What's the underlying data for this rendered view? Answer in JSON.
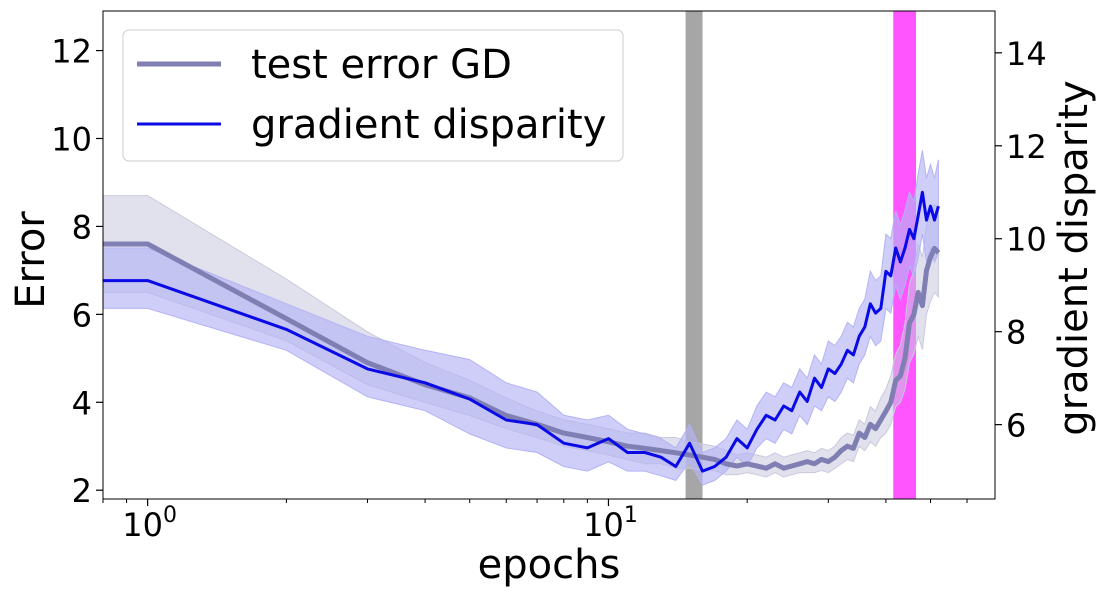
{
  "chart_data": {
    "type": "line",
    "xscale": "log",
    "xlim": [
      0.8,
      69
    ],
    "ylim_left": [
      1.8,
      12.9
    ],
    "ylim_right": [
      4.4,
      14.9
    ],
    "xlabel": "epochs",
    "ylabel_left": "Error",
    "ylabel_right": "gradient disparity",
    "x_ticks": [
      {
        "value": 1,
        "base": "10",
        "exp": "0"
      },
      {
        "value": 10,
        "base": "10",
        "exp": "1"
      }
    ],
    "y_ticks_left": [
      {
        "value": 2,
        "label": "2"
      },
      {
        "value": 4,
        "label": "4"
      },
      {
        "value": 6,
        "label": "6"
      },
      {
        "value": 8,
        "label": "8"
      },
      {
        "value": 10,
        "label": "10"
      },
      {
        "value": 12,
        "label": "12"
      }
    ],
    "y_ticks_right": [
      {
        "value": 6,
        "label": "6"
      },
      {
        "value": 8,
        "label": "8"
      },
      {
        "value": 10,
        "label": "10"
      },
      {
        "value": 12,
        "label": "12"
      },
      {
        "value": 14,
        "label": "14"
      }
    ],
    "legend_position": "top-left",
    "series": [
      {
        "name": "test error GD",
        "axis": "left",
        "color": "#7f7fb3",
        "band_color": "#c9c9de",
        "points": [
          [
            0.8,
            7.6,
            6.5,
            8.7
          ],
          [
            1,
            7.6,
            6.5,
            8.7
          ],
          [
            2,
            5.9,
            5.4,
            6.8
          ],
          [
            3,
            4.9,
            4.4,
            5.6
          ],
          [
            4,
            4.4,
            4.0,
            4.9
          ],
          [
            5,
            4.1,
            3.7,
            4.5
          ],
          [
            6,
            3.7,
            3.4,
            4.1
          ],
          [
            7,
            3.5,
            3.2,
            3.8
          ],
          [
            8,
            3.3,
            3.0,
            3.6
          ],
          [
            9,
            3.2,
            2.9,
            3.5
          ],
          [
            10,
            3.1,
            2.8,
            3.4
          ],
          [
            11,
            3.0,
            2.7,
            3.3
          ],
          [
            12,
            2.95,
            2.6,
            3.3
          ],
          [
            13,
            2.9,
            2.6,
            3.2
          ],
          [
            14,
            2.85,
            2.5,
            3.2
          ],
          [
            15,
            2.8,
            2.5,
            3.1
          ],
          [
            16,
            2.75,
            2.45,
            3.05
          ],
          [
            17,
            2.7,
            2.45,
            3.0
          ],
          [
            18,
            2.6,
            2.35,
            2.9
          ],
          [
            19,
            2.55,
            2.35,
            2.8
          ],
          [
            20,
            2.6,
            2.4,
            2.85
          ],
          [
            21,
            2.55,
            2.35,
            2.8
          ],
          [
            22,
            2.5,
            2.3,
            2.75
          ],
          [
            23,
            2.6,
            2.4,
            2.85
          ],
          [
            24,
            2.5,
            2.3,
            2.75
          ],
          [
            25,
            2.55,
            2.35,
            2.8
          ],
          [
            26,
            2.6,
            2.4,
            2.85
          ],
          [
            27,
            2.65,
            2.4,
            2.9
          ],
          [
            28,
            2.6,
            2.4,
            2.85
          ],
          [
            29,
            2.7,
            2.45,
            2.95
          ],
          [
            30,
            2.65,
            2.4,
            2.9
          ],
          [
            31,
            2.75,
            2.5,
            3.0
          ],
          [
            32,
            2.9,
            2.6,
            3.2
          ],
          [
            33,
            3.0,
            2.7,
            3.3
          ],
          [
            34,
            2.95,
            2.65,
            3.25
          ],
          [
            35,
            3.3,
            3.0,
            3.6
          ],
          [
            36,
            3.2,
            2.9,
            3.5
          ],
          [
            37,
            3.5,
            3.1,
            3.9
          ],
          [
            38,
            3.4,
            3.0,
            3.8
          ],
          [
            39,
            3.6,
            3.2,
            4.1
          ],
          [
            40,
            3.8,
            3.3,
            4.3
          ],
          [
            41,
            4.0,
            3.5,
            4.6
          ],
          [
            42,
            4.5,
            3.9,
            5.1
          ],
          [
            43,
            4.6,
            4.0,
            5.3
          ],
          [
            44,
            5.0,
            4.3,
            5.8
          ],
          [
            45,
            5.8,
            4.9,
            6.7
          ],
          [
            46,
            6.0,
            5.1,
            7.0
          ],
          [
            47,
            6.5,
            5.5,
            7.6
          ],
          [
            48,
            6.2,
            5.2,
            7.3
          ],
          [
            49,
            7.0,
            6.0,
            8.0
          ],
          [
            50,
            7.3,
            6.3,
            8.3
          ],
          [
            51,
            7.5,
            6.5,
            8.5
          ],
          [
            52,
            7.4,
            6.4,
            8.4
          ]
        ]
      },
      {
        "name": "gradient disparity",
        "axis": "right",
        "color": "#0a0ae6",
        "band_color": "#b3b3f5",
        "points": [
          [
            0.8,
            9.1,
            8.5,
            9.8
          ],
          [
            1,
            9.1,
            8.5,
            9.8
          ],
          [
            2,
            8.05,
            7.6,
            8.6
          ],
          [
            3,
            7.2,
            6.6,
            7.9
          ],
          [
            4,
            6.9,
            6.3,
            7.6
          ],
          [
            5,
            6.55,
            5.8,
            7.4
          ],
          [
            6,
            6.1,
            5.5,
            6.9
          ],
          [
            7,
            6.0,
            5.4,
            6.7
          ],
          [
            8,
            5.6,
            5.1,
            6.2
          ],
          [
            9,
            5.5,
            5.0,
            6.1
          ],
          [
            10,
            5.7,
            5.2,
            6.2
          ],
          [
            11,
            5.4,
            5.0,
            5.9
          ],
          [
            12,
            5.4,
            5.0,
            5.8
          ],
          [
            13,
            5.3,
            4.9,
            5.7
          ],
          [
            14,
            5.1,
            4.8,
            5.5
          ],
          [
            15,
            5.6,
            5.2,
            6.0
          ],
          [
            16,
            5.0,
            4.7,
            5.4
          ],
          [
            17,
            5.1,
            4.8,
            5.5
          ],
          [
            18,
            5.3,
            5.0,
            5.7
          ],
          [
            19,
            5.7,
            5.3,
            6.1
          ],
          [
            20,
            5.5,
            5.1,
            5.9
          ],
          [
            21,
            5.9,
            5.5,
            6.4
          ],
          [
            22,
            6.2,
            5.7,
            6.7
          ],
          [
            23,
            6.1,
            5.6,
            6.6
          ],
          [
            24,
            6.4,
            5.9,
            6.9
          ],
          [
            25,
            6.3,
            5.8,
            6.8
          ],
          [
            26,
            6.7,
            6.2,
            7.2
          ],
          [
            27,
            6.5,
            6.0,
            7.0
          ],
          [
            28,
            7.0,
            6.4,
            7.5
          ],
          [
            29,
            6.8,
            6.3,
            7.3
          ],
          [
            30,
            7.2,
            6.6,
            7.8
          ],
          [
            31,
            7.1,
            6.5,
            7.7
          ],
          [
            32,
            7.3,
            6.7,
            7.9
          ],
          [
            33,
            7.6,
            7.0,
            8.2
          ],
          [
            34,
            7.5,
            6.9,
            8.1
          ],
          [
            35,
            7.9,
            7.3,
            8.5
          ],
          [
            36,
            8.1,
            7.5,
            8.7
          ],
          [
            37,
            8.6,
            7.9,
            9.3
          ],
          [
            38,
            8.4,
            7.7,
            9.1
          ],
          [
            39,
            8.5,
            7.8,
            9.2
          ],
          [
            40,
            9.3,
            8.5,
            10.1
          ],
          [
            41,
            9.2,
            8.4,
            10.0
          ],
          [
            42,
            9.8,
            9.0,
            10.6
          ],
          [
            43,
            9.5,
            8.7,
            10.3
          ],
          [
            44,
            9.8,
            9.0,
            10.6
          ],
          [
            45,
            10.2,
            9.4,
            11.0
          ],
          [
            46,
            10.0,
            9.2,
            10.8
          ],
          [
            47,
            10.5,
            9.6,
            11.4
          ],
          [
            48,
            11.0,
            10.1,
            11.9
          ],
          [
            49,
            10.4,
            9.5,
            11.3
          ],
          [
            50,
            10.7,
            9.8,
            11.6
          ],
          [
            51,
            10.4,
            9.5,
            11.3
          ],
          [
            52,
            10.7,
            9.7,
            11.7
          ]
        ]
      }
    ],
    "highlight_spans": [
      {
        "x0": 14.7,
        "x1": 16.0,
        "color": "#a6a6a6"
      },
      {
        "x0": 41.5,
        "x1": 46.5,
        "color": "#ff55ff"
      }
    ]
  }
}
